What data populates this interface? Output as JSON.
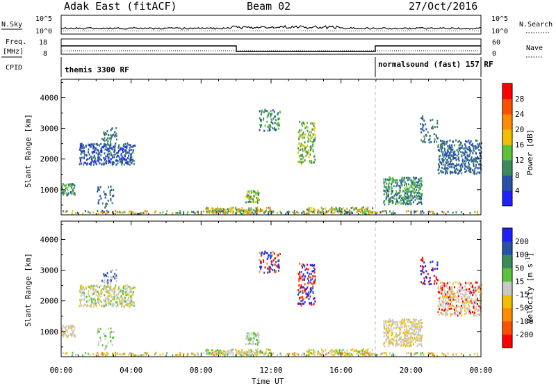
{
  "header": {
    "title_left": "Adak East (fitACF)",
    "title_center": "Beam 02",
    "title_right": "27/Oct/2016"
  },
  "sky_panel": {
    "left_label": "N.Sky",
    "right_label": "N.Search",
    "left_ticks": [
      "10^5",
      "10^0"
    ],
    "right_ticks": [
      "10^5",
      "10^0"
    ]
  },
  "freq_panel": {
    "left_label_1": "Freq.",
    "left_label_2": "[MHz]",
    "right_label": "Nave",
    "left_ticks": [
      "18",
      "8"
    ],
    "right_ticks": [
      "60",
      "0"
    ]
  },
  "cpid_panel": {
    "label": "CPID",
    "program_1": "themis 3300 RF",
    "program_2": "normalsound (fast) 157 RF"
  },
  "colors": {
    "power_scale": [
      "#1f1fff",
      "#2851a8",
      "#3b8a5a",
      "#5cc23c",
      "#f0c000",
      "#ff8c00",
      "#ff5000",
      "#ff0000"
    ],
    "velocity_scale": [
      "#ff0000",
      "#ff5000",
      "#ff8c00",
      "#f0c000",
      "#c8c8c8",
      "#5cc23c",
      "#3b8a5a",
      "#2851a8",
      "#1f1fff"
    ]
  },
  "chart_data": [
    {
      "type": "heatmap",
      "name": "Power",
      "ylabel": "Slant Range [km]",
      "colorbar_label": "Power [dB]",
      "colorbar_ticks": [
        "28",
        "24",
        "20",
        "16",
        "12",
        "8",
        "4"
      ],
      "yticks": [
        "4000",
        "3000",
        "2000",
        "1000"
      ],
      "ylim": [
        180,
        4600
      ],
      "xlim": [
        "00:00",
        "24:00"
      ]
    },
    {
      "type": "heatmap",
      "name": "Velocity",
      "ylabel": "Slant Range [km]",
      "xlabel": "Time UT",
      "colorbar_label": "Velocity [m s^-1]",
      "colorbar_ticks": [
        "200",
        "100",
        "50",
        "15",
        "-15",
        "-50",
        "-100",
        "-200"
      ],
      "yticks": [
        "4000",
        "3000",
        "2000",
        "1000"
      ],
      "xticks": [
        "00:00",
        "04:00",
        "08:00",
        "12:00",
        "16:00",
        "20:00",
        "00:00"
      ],
      "ylim": [
        180,
        4600
      ],
      "xlim": [
        "00:00",
        "24:00"
      ]
    }
  ]
}
